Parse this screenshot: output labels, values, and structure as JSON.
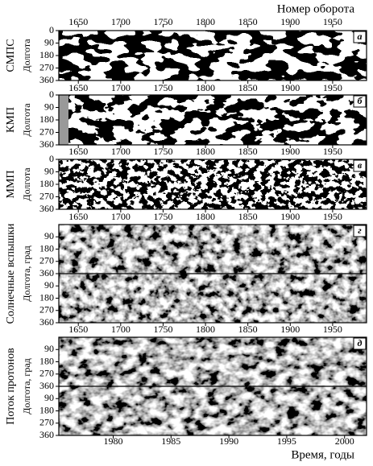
{
  "top_axis": {
    "title": "Номер оборота",
    "range": [
      1627,
      1990
    ],
    "ticks": [
      1650,
      1700,
      1750,
      1800,
      1850,
      1900,
      1950
    ]
  },
  "panels": [
    {
      "letter": "а",
      "label": "СМПС",
      "ylabel": "Долгота",
      "ylim": [
        0,
        360
      ],
      "yticks": [
        0,
        90,
        180,
        270,
        360
      ]
    },
    {
      "letter": "б",
      "label": "КМП",
      "ylabel": "Долгота",
      "ylim": [
        0,
        360
      ],
      "yticks": [
        0,
        90,
        180,
        270,
        360
      ]
    },
    {
      "letter": "в",
      "label": "ММП",
      "ylabel": "Долгота",
      "ylim": [
        0,
        360
      ],
      "yticks": [
        0,
        90,
        180,
        270,
        360
      ]
    },
    {
      "letter": "г",
      "label": "Солнечные вспышки",
      "ylabel": "Долгота, град",
      "ylim": [
        0,
        360
      ],
      "yticks": [
        90,
        180,
        270,
        360
      ]
    },
    {
      "letter": "д",
      "label": "Поток протонов",
      "ylabel": "Долгота, град",
      "ylim": [
        0,
        360
      ],
      "yticks": [
        90,
        180,
        270,
        360
      ]
    }
  ],
  "bottom_axis": {
    "title": "Время, годы",
    "range": [
      1975.3,
      2001.9
    ],
    "ticks": [
      1980,
      1985,
      1990,
      1995,
      2000
    ]
  }
}
